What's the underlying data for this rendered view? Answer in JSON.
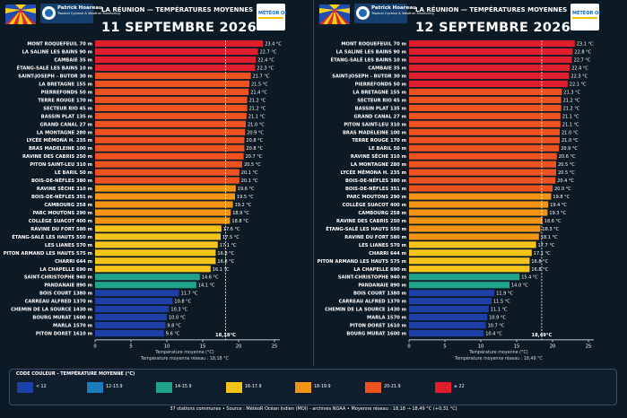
{
  "header": {
    "brand_name": "Patrick Hoareau",
    "brand_sub": "Tropical Cyclone & Weather Monitoring",
    "meteo_logo": "MÉTÉOR OI",
    "title": "LA RÉUNION — TEMPÉRATURES MOYENNES"
  },
  "colors": {
    "background": "#0c1a26",
    "bins": [
      "#1d3fa6",
      "#1b7cbb",
      "#1fa38a",
      "#f6c319",
      "#f39414",
      "#ed5220",
      "#e01f2e"
    ]
  },
  "chart_data": [
    {
      "type": "bar",
      "orientation": "horizontal",
      "title": "11 SEPTEMBRE 2026",
      "xlabel": "Température moyenne (°C)",
      "xlim": [
        0,
        25
      ],
      "xticks": [
        0,
        5,
        10,
        15,
        20,
        25
      ],
      "reference_line": {
        "value": 18.18,
        "label": "18,18°C"
      },
      "caption": "Température moyenne réseau : 18,18 °C",
      "categories": [
        "MONT ROQUEFEUIL 70 m",
        "LA SALINE LES BAINS 90 m",
        "CAMBAIE 35 m",
        "ÉTANG-SALÉ LES BAINS 10 m",
        "SAINT-JOSEPH - BUTOR 30 m",
        "LA BRETAGNE 155 m",
        "PIERREFONDS 50 m",
        "TERRE ROUGE 170 m",
        "SECTEUR RIO 45 m",
        "BASSIN PLAT 135 m",
        "GRAND CANAL 27 m",
        "LA MONTAGNE 280 m",
        "LYCÉE MÉMONA H. 235 m",
        "BRAS MADELEINE 100 m",
        "RAVINE DES CABRIS 250 m",
        "PITON SAINT-LEU 310 m",
        "LE BARIL 50 m",
        "BOIS-DE-NÈFLES 380 m",
        "RAVINE SÈCHE 310 m",
        "BOIS-DE-NÈFLES 351 m",
        "CAMBOURG 258 m",
        "PARC MOUTONS 290 m",
        "COLLÈGE SUACOT 400 m",
        "RAVINE DU FORT 580 m",
        "ÉTANG-SALÉ LES HAUTS 550 m",
        "LES LIANES 570 m",
        "PITON ARMAND LES HAUTS 575 m",
        "CHARRI 644 m",
        "LA CHAPELLE 690 m",
        "SAINT-CHRISTOPHE 940 m",
        "PANDANAIE 890 m",
        "BOIS COURT 1380 m",
        "CARREAU ALFRED 1370 m",
        "CHEMIN DE LA SOURCE 1430 m",
        "BOURG MURAT 1600 m",
        "MARLA 1570 m",
        "PITON DORET 1610 m"
      ],
      "values": [
        23.4,
        22.7,
        22.4,
        22.3,
        21.7,
        21.5,
        21.4,
        21.2,
        21.2,
        21.1,
        21.0,
        20.9,
        20.8,
        20.8,
        20.7,
        20.5,
        20.1,
        20.1,
        19.6,
        19.5,
        19.2,
        18.9,
        18.8,
        17.6,
        17.5,
        17.1,
        16.8,
        16.8,
        16.1,
        14.6,
        14.1,
        11.7,
        10.8,
        10.3,
        10.0,
        9.8,
        9.6
      ],
      "value_labels": [
        "23.4 °C",
        "22.7 °C",
        "22.4 °C",
        "22.3 °C",
        "21.7 °C",
        "21.5 °C",
        "21.4 °C",
        "21.2 °C",
        "21.2 °C",
        "21.1 °C",
        "21.0 °C",
        "20.9 °C",
        "20.8 °C",
        "20.8 °C",
        "20.7 °C",
        "20.5 °C",
        "20.1 °C",
        "20.1 °C",
        "19.6 °C",
        "19.5 °C",
        "19.2 °C",
        "18.9 °C",
        "18.8 °C",
        "17.6 °C",
        "17.5 °C",
        "17.1 °C",
        "16.8 °C",
        "16.8 °C",
        "16.1 °C",
        "14.6 °C",
        "14.1 °C",
        "11.7 °C",
        "10.8 °C",
        "10.3 °C",
        "10.0 °C",
        "9.8 °C",
        "9.6 °C"
      ]
    },
    {
      "type": "bar",
      "orientation": "horizontal",
      "title": "12 SEPTEMBRE 2026",
      "xlabel": "Température moyenne (°C)",
      "xlim": [
        0,
        25
      ],
      "xticks": [
        0,
        5,
        10,
        15,
        20,
        25
      ],
      "reference_line": {
        "value": 18.49,
        "label": "18,49°C"
      },
      "caption": "Température moyenne réseau : 18,49 °C",
      "categories": [
        "MONT ROQUEFEUIL 70 m",
        "LA SALINE LES BAINS 90 m",
        "ÉTANG-SALÉ LES BAINS 10 m",
        "CAMBAIE 35 m",
        "SAINT-JOSEPH - BUTOR 30 m",
        "PIERREFONDS 50 m",
        "LA BRETAGNE 155 m",
        "SECTEUR RIO 45 m",
        "BASSIN PLAT 135 m",
        "GRAND CANAL 27 m",
        "PITON SAINT-LEU 310 m",
        "BRAS MADELEINE 100 m",
        "TERRE ROUGE 170 m",
        "LE BARIL 50 m",
        "RAVINE SÈCHE 310 m",
        "LA MONTAGNE 280 m",
        "LYCÉE MÉMONA H. 235 m",
        "BOIS-DE-NÈFLES 380 m",
        "BOIS-DE-NÈFLES 351 m",
        "PARC MOUTONS 290 m",
        "COLLÈGE SUACOT 400 m",
        "CAMBOURG 258 m",
        "RAVINE DES CABRIS 250 m",
        "ÉTANG-SALÉ LES HAUTS 550 m",
        "RAVINE DU FORT 580 m",
        "LES LIANES 570 m",
        "CHARRI 644 m",
        "PITON ARMAND LES HAUTS 575 m",
        "LA CHAPELLE 690 m",
        "SAINT-CHRISTOPHE 940 m",
        "PANDANAIE 890 m",
        "BOIS COURT 1380 m",
        "CARREAU ALFRED 1370 m",
        "CHEMIN DE LA SOURCE 1430 m",
        "MARLA 1570 m",
        "PITON DORET 1610 m",
        "BOURG MURAT 1600 m"
      ],
      "values": [
        23.1,
        22.8,
        22.7,
        22.4,
        22.3,
        22.1,
        21.3,
        21.2,
        21.2,
        21.1,
        21.1,
        21.0,
        21.0,
        20.9,
        20.6,
        20.5,
        20.5,
        20.4,
        20.0,
        19.8,
        19.4,
        19.3,
        18.6,
        18.3,
        18.1,
        17.7,
        17.1,
        16.8,
        16.8,
        15.4,
        14.0,
        11.9,
        11.5,
        11.1,
        10.9,
        10.7,
        10.4
      ],
      "value_labels": [
        "23.1 °C",
        "22.8 °C",
        "22.7 °C",
        "22.4 °C",
        "22.3 °C",
        "22.1 °C",
        "21.3 °C",
        "21.2 °C",
        "21.2 °C",
        "21.1 °C",
        "21.1 °C",
        "21.0 °C",
        "21.0 °C",
        "20.9 °C",
        "20.6 °C",
        "20.5 °C",
        "20.5 °C",
        "20.4 °C",
        "20.0 °C",
        "19.8 °C",
        "19.4 °C",
        "19.3 °C",
        "18.6 °C",
        "18.3 °C",
        "18.1 °C",
        "17.7 °C",
        "17.1 °C",
        "16.8 °C",
        "16.8 °C",
        "15.4 °C",
        "14.0 °C",
        "11.9 °C",
        "11.5 °C",
        "11.1 °C",
        "10.9 °C",
        "10.7 °C",
        "10.4 °C"
      ]
    }
  ],
  "legend": {
    "title": "CODE COULEUR - TEMPÉRATURE MOYENNE (°C)",
    "items": [
      {
        "label": "< 12",
        "color": "#1d3fa6"
      },
      {
        "label": "12-13.9",
        "color": "#1b7cbb"
      },
      {
        "label": "14-15.9",
        "color": "#1fa38a"
      },
      {
        "label": "16-17.9",
        "color": "#f6c319"
      },
      {
        "label": "18-19.9",
        "color": "#f39414"
      },
      {
        "label": "20-21.9",
        "color": "#ed5220"
      },
      {
        "label": "≥ 22",
        "color": "#e01f2e"
      }
    ]
  },
  "footer": {
    "text": "37 stations communes  •  Source : MétéoR Océan Indien (MOI) - archives NOAA  •  Moyenne réseau : 18,18 → 18,49 °C (+0,31 °C)"
  }
}
